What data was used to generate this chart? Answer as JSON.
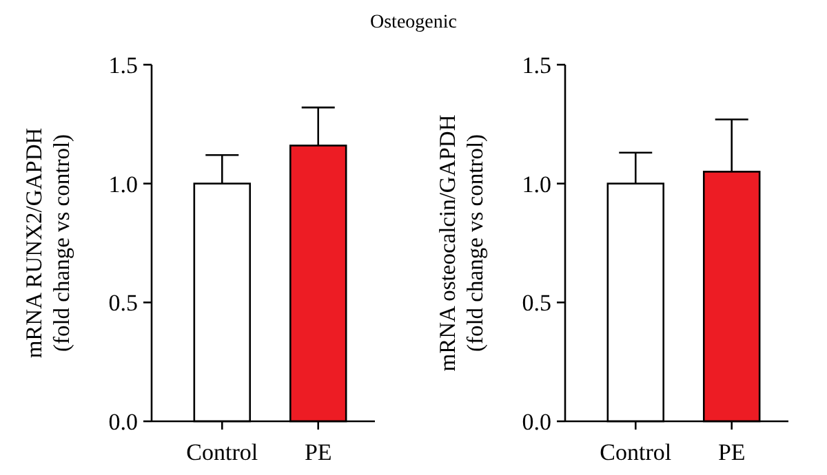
{
  "chart_data": [
    {
      "type": "bar",
      "title": "Osteogenic",
      "ylabel": "mRNA RUNX2/GAPDH\n(fold change vs control)",
      "categories": [
        "Control",
        "PE"
      ],
      "values": [
        1.0,
        1.16
      ],
      "colors": [
        "#ffffff",
        "#ed1c24"
      ],
      "errors": [
        [
          1.0,
          1.12
        ],
        [
          1.16,
          1.32
        ]
      ],
      "ylim": [
        0,
        1.5
      ],
      "yticks": [
        {
          "value": 0,
          "label": "0.0"
        },
        {
          "value": 0.5,
          "label": "0.5"
        },
        {
          "value": 1,
          "label": "1.0"
        },
        {
          "value": 1.5,
          "label": "1.5"
        }
      ],
      "grid": false
    },
    {
      "type": "bar",
      "ylabel": "mRNA osteocalcin/GAPDH\n(fold change vs control)",
      "categories": [
        "Control",
        "PE"
      ],
      "values": [
        1.0,
        1.05
      ],
      "colors": [
        "#ffffff",
        "#ed1c24"
      ],
      "errors": [
        [
          1.0,
          1.13
        ],
        [
          1.05,
          1.27
        ]
      ],
      "ylim": [
        0,
        1.5
      ],
      "yticks": [
        {
          "value": 0,
          "label": "0.0"
        },
        {
          "value": 0.5,
          "label": "0.5"
        },
        {
          "value": 1,
          "label": "1.0"
        },
        {
          "value": 1.5,
          "label": "1.5"
        }
      ],
      "grid": false
    }
  ]
}
